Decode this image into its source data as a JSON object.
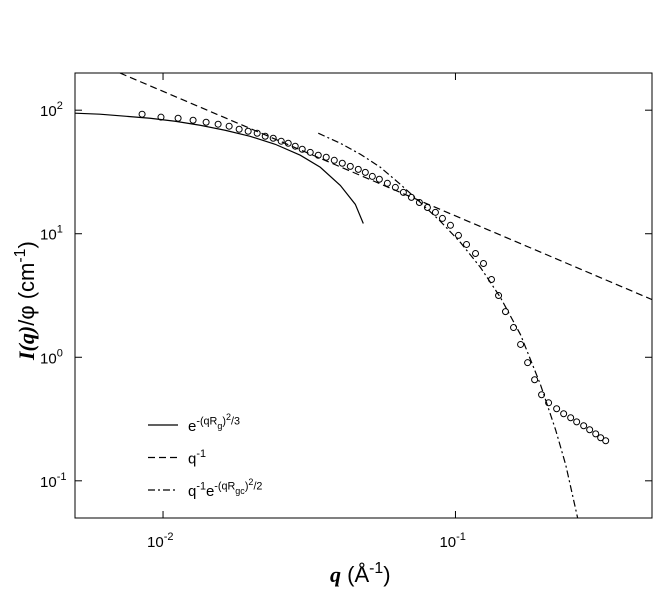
{
  "chart_data": {
    "type": "scatter",
    "xlog": true,
    "ylog": true,
    "xlim": [
      0.005,
      0.47
    ],
    "ylim": [
      0.05,
      200
    ],
    "xticks": [
      {
        "value": 0.01,
        "label": "10",
        "exponent": "-2"
      },
      {
        "value": 0.1,
        "label": "10",
        "exponent": "-1"
      }
    ],
    "yticks": [
      {
        "value": 0.1,
        "label": "10",
        "exponent": "-1"
      },
      {
        "value": 1,
        "label": "10",
        "exponent": "0"
      },
      {
        "value": 10,
        "label": "10",
        "exponent": "1"
      },
      {
        "value": 100,
        "label": "10",
        "exponent": "2"
      }
    ],
    "xlabel": [
      {
        "text": "q",
        "pos": "base",
        "style": "bold-italic"
      },
      {
        "text": " (Å",
        "pos": "base"
      },
      {
        "text": "-1",
        "pos": "sup"
      },
      {
        "text": ")",
        "pos": "base"
      }
    ],
    "ylabel": [
      {
        "text": "I(q)",
        "pos": "base",
        "style": "bold-italic"
      },
      {
        "text": "/φ (cm",
        "pos": "base"
      },
      {
        "text": "-1",
        "pos": "sup"
      },
      {
        "text": ")",
        "pos": "base"
      }
    ],
    "legend": "lower-left",
    "series": [
      {
        "marker": "circle",
        "color": "#000000",
        "x": [
          0.00848,
          0.00984,
          0.01126,
          0.01267,
          0.01404,
          0.01543,
          0.01683,
          0.01821,
          0.01955,
          0.02099,
          0.02236,
          0.02381,
          0.02536,
          0.0268,
          0.02832,
          0.02992,
          0.03187,
          0.03395,
          0.03615,
          0.03851,
          0.04102,
          0.04369,
          0.04653,
          0.04918,
          0.05197,
          0.05492,
          0.0585,
          0.06231,
          0.06637,
          0.07069,
          0.07529,
          0.08019,
          0.08541,
          0.09027,
          0.09614,
          0.1024,
          0.1091,
          0.1171,
          0.1247,
          0.1328,
          0.1404,
          0.1483,
          0.158,
          0.167,
          0.1765,
          0.1865,
          0.197,
          0.2082,
          0.2218,
          0.2344,
          0.2477,
          0.2597,
          0.2744,
          0.2877,
          0.3017,
          0.3137,
          0.3264
        ],
        "values": [
          92.8,
          87.8,
          86.1,
          82.9,
          79.9,
          77.0,
          74.2,
          70.1,
          67.5,
          65.1,
          61.5,
          59.3,
          56.1,
          54.0,
          51.1,
          48.3,
          45.6,
          43.2,
          41.6,
          39.3,
          37.2,
          35.1,
          33.2,
          31.4,
          29.1,
          27.6,
          25.6,
          23.7,
          21.6,
          19.7,
          17.9,
          16.3,
          14.9,
          13.3,
          11.7,
          9.69,
          8.19,
          6.92,
          5.74,
          4.26,
          3.16,
          2.34,
          1.74,
          1.27,
          0.904,
          0.658,
          0.497,
          0.428,
          0.383,
          0.349,
          0.324,
          0.3,
          0.279,
          0.259,
          0.24,
          0.223,
          0.211
        ]
      },
      {
        "name": [
          {
            "text": "e",
            "pos": "base"
          },
          {
            "text": "-(qR",
            "pos": "sup"
          },
          {
            "text": "g",
            "pos": "supsub"
          },
          {
            "text": ")",
            "pos": "sup"
          },
          {
            "text": "2",
            "pos": "supsup"
          },
          {
            "text": "/3",
            "pos": "sup"
          }
        ],
        "line": "solid",
        "color": "#000000",
        "x": [
          0.005,
          0.00608,
          0.00741,
          0.00903,
          0.011,
          0.01339,
          0.0163,
          0.01985,
          0.02418,
          0.02946,
          0.0345,
          0.04039,
          0.04545,
          0.0484
        ],
        "values": [
          94.6,
          92.8,
          89.4,
          86.1,
          81.4,
          75.5,
          68.8,
          61.5,
          53.0,
          43.2,
          34.5,
          24.6,
          17.3,
          12.1
        ]
      },
      {
        "name": [
          {
            "text": "q",
            "pos": "base"
          },
          {
            "text": "-1",
            "pos": "sup"
          }
        ],
        "line": "dashed",
        "color": "#000000",
        "x": [
          0.00712,
          0.47
        ],
        "values": [
          200,
          2.93
        ]
      },
      {
        "name": [
          {
            "text": "q",
            "pos": "base"
          },
          {
            "text": "-1",
            "pos": "sup"
          },
          {
            "text": "e",
            "pos": "base"
          },
          {
            "text": "-(qR",
            "pos": "sup"
          },
          {
            "text": "gc",
            "pos": "supsub"
          },
          {
            "text": ")",
            "pos": "sup"
          },
          {
            "text": "2",
            "pos": "supsup"
          },
          {
            "text": "/2",
            "pos": "sup"
          }
        ],
        "line": "dashdot",
        "color": "#000000",
        "x": [
          0.03395,
          0.04039,
          0.0473,
          0.05536,
          0.06482,
          0.07587,
          0.08883,
          0.104,
          0.1218,
          0.1426,
          0.167,
          0.1954,
          0.22,
          0.2382,
          0.2617
        ],
        "values": [
          65.1,
          54.0,
          44.0,
          34.5,
          25.1,
          17.9,
          12.6,
          8.5,
          5.33,
          3.04,
          1.52,
          0.599,
          0.259,
          0.135,
          0.05
        ]
      }
    ]
  }
}
